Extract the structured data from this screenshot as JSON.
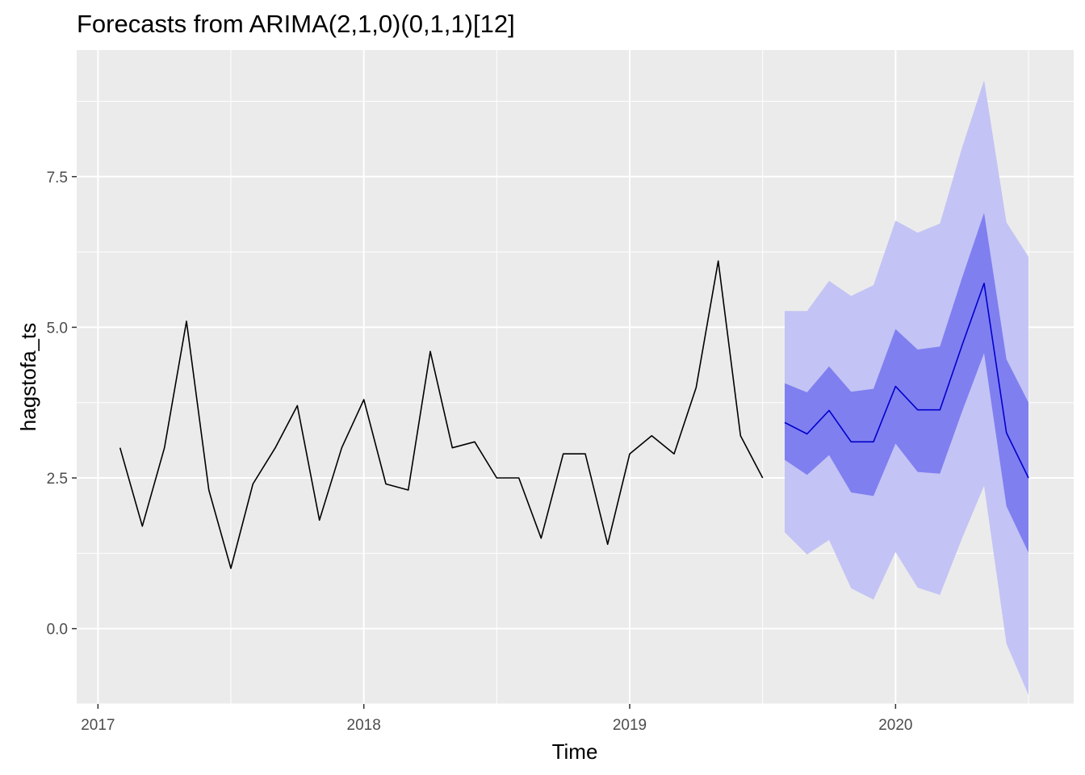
{
  "chart_data": {
    "type": "line",
    "title": "Forecasts from ARIMA(2,1,0)(0,1,1)[12]",
    "xlabel": "Time",
    "ylabel": "hagstofa_ts",
    "xlim": [
      2016.92,
      2020.67
    ],
    "ylim": [
      -1.25,
      9.6
    ],
    "x_ticks": [
      2017,
      2018,
      2019,
      2020
    ],
    "x_tick_labels": [
      "2017",
      "2018",
      "2019",
      "2020"
    ],
    "y_ticks": [
      0,
      2.5,
      5,
      7.5
    ],
    "y_tick_labels": [
      "0.0",
      "2.5",
      "5.0",
      "7.5"
    ],
    "grid": true,
    "legend": "none",
    "colors": {
      "panel": "#ebebeb",
      "grid": "#ffffff",
      "observed": "#000000",
      "forecast": "#0000cc",
      "pi80": "#7f7ff0",
      "pi95": "#c3c3f5"
    },
    "observed": {
      "x": [
        2017.083,
        2017.167,
        2017.25,
        2017.333,
        2017.417,
        2017.5,
        2017.583,
        2017.667,
        2017.75,
        2017.833,
        2017.917,
        2018.0,
        2018.083,
        2018.167,
        2018.25,
        2018.333,
        2018.417,
        2018.5,
        2018.583,
        2018.667,
        2018.75,
        2018.833,
        2018.917,
        2019.0,
        2019.083,
        2019.167,
        2019.25,
        2019.333,
        2019.417,
        2019.5
      ],
      "y": [
        3.0,
        1.7,
        3.0,
        5.1,
        2.3,
        1.0,
        2.4,
        3.0,
        3.7,
        1.8,
        3.0,
        3.8,
        2.4,
        2.3,
        4.6,
        3.0,
        3.1,
        2.5,
        2.5,
        1.5,
        2.9,
        2.9,
        1.4,
        2.9,
        3.2,
        2.9,
        4.0,
        6.1,
        3.2,
        2.5
      ]
    },
    "forecast": {
      "x": [
        2019.583,
        2019.667,
        2019.75,
        2019.833,
        2019.917,
        2020.0,
        2020.083,
        2020.167,
        2020.25,
        2020.333,
        2020.417,
        2020.5
      ],
      "mean": [
        3.42,
        3.23,
        3.62,
        3.1,
        3.1,
        4.02,
        3.63,
        3.63,
        4.7,
        5.73,
        3.25,
        2.5
      ],
      "lo80": [
        2.8,
        2.55,
        2.88,
        2.26,
        2.2,
        3.07,
        2.6,
        2.57,
        3.6,
        4.57,
        2.03,
        1.26
      ],
      "hi80": [
        4.07,
        3.92,
        4.35,
        3.93,
        3.98,
        4.97,
        4.63,
        4.68,
        5.82,
        6.9,
        4.47,
        3.75
      ],
      "lo95": [
        1.6,
        1.23,
        1.47,
        0.67,
        0.48,
        1.27,
        0.68,
        0.56,
        1.5,
        2.37,
        -0.25,
        -1.1
      ],
      "hi95": [
        5.27,
        5.27,
        5.77,
        5.52,
        5.7,
        6.77,
        6.57,
        6.72,
        7.98,
        9.1,
        6.74,
        6.17
      ]
    }
  }
}
